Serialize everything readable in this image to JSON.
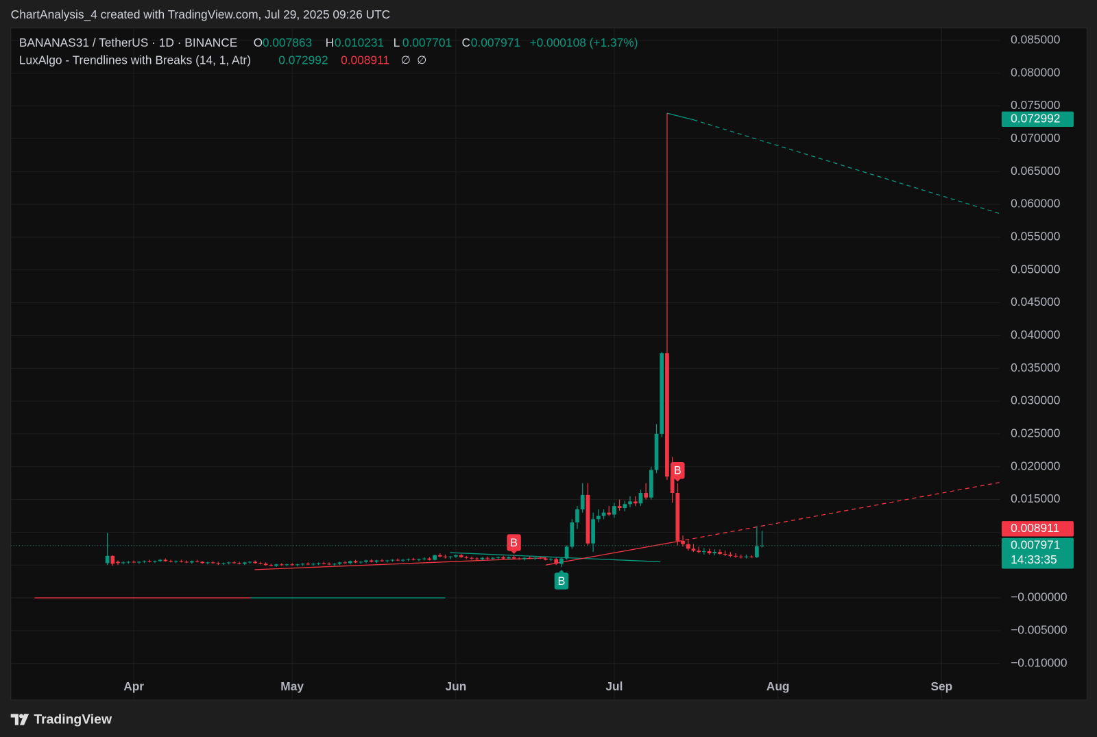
{
  "header": {
    "title": "ChartAnalysis_4 created with TradingView.com, Jul 29, 2025 09:26 UTC"
  },
  "chart_data": {
    "type": "candlestick",
    "symbol": "BANANAS31 / TetherUS · 1D · BINANCE",
    "ohlc_legend": [
      {
        "label": "O",
        "value": "0.007863"
      },
      {
        "label": "H",
        "value": "0.010231"
      },
      {
        "label": "L",
        "value": "0.007701"
      },
      {
        "label": "C",
        "value": "0.007971"
      }
    ],
    "change": "+0.000108 (+1.37%)",
    "indicator": {
      "name": "LuxAlgo - Trendlines with Breaks (14, 1, Atr)",
      "values": [
        {
          "text": "0.072992",
          "color": "#089981"
        },
        {
          "text": "0.008911",
          "color": "#f23645"
        }
      ],
      "icons": [
        "∅",
        "∅"
      ]
    },
    "up_color": "#089981",
    "down_color": "#f23645",
    "grid": true,
    "xlim": [
      67.7,
      255.1
    ],
    "xticks": [
      {
        "value": 91,
        "label": "Apr"
      },
      {
        "value": 121,
        "label": "May"
      },
      {
        "value": 152,
        "label": "Jun"
      },
      {
        "value": 182,
        "label": "Jul"
      },
      {
        "value": 213,
        "label": "Aug"
      },
      {
        "value": 244,
        "label": "Sep"
      }
    ],
    "ylim": [
      -0.01546,
      0.0869
    ],
    "yticks": [
      {
        "value": 0.085,
        "label": "0.085000"
      },
      {
        "value": 0.08,
        "label": "0.080000"
      },
      {
        "value": 0.075,
        "label": "0.075000"
      },
      {
        "value": 0.07,
        "label": "0.070000"
      },
      {
        "value": 0.065,
        "label": "0.065000"
      },
      {
        "value": 0.06,
        "label": "0.060000"
      },
      {
        "value": 0.055,
        "label": "0.055000"
      },
      {
        "value": 0.05,
        "label": "0.050000"
      },
      {
        "value": 0.045,
        "label": "0.045000"
      },
      {
        "value": 0.04,
        "label": "0.040000"
      },
      {
        "value": 0.035,
        "label": "0.035000"
      },
      {
        "value": 0.03,
        "label": "0.030000"
      },
      {
        "value": 0.025,
        "label": "0.025000"
      },
      {
        "value": 0.02,
        "label": "0.020000"
      },
      {
        "value": 0.015,
        "label": "0.015000"
      },
      {
        "value": 0.01,
        "label": "0.010000"
      },
      {
        "value": 0.005,
        "label": "0.005000"
      },
      {
        "value": 0,
        "label": "−0.000000"
      },
      {
        "value": -0.005,
        "label": "−0.005000"
      },
      {
        "value": -0.01,
        "label": "−0.010000"
      }
    ],
    "candles": [
      {
        "x": 86,
        "o": 0.0053,
        "h": 0.0099,
        "l": 0.005,
        "c": 0.0064
      },
      {
        "x": 87,
        "o": 0.0064,
        "h": 0.0065,
        "l": 0.0049,
        "c": 0.0052
      },
      {
        "x": 88,
        "o": 0.0055,
        "h": 0.0057,
        "l": 0.005,
        "c": 0.0053
      },
      {
        "x": 89,
        "o": 0.0053,
        "h": 0.0056,
        "l": 0.0051,
        "c": 0.0054
      },
      {
        "x": 90,
        "o": 0.0054,
        "h": 0.0056,
        "l": 0.0052,
        "c": 0.0055
      },
      {
        "x": 91,
        "o": 0.0055,
        "h": 0.0057,
        "l": 0.0053,
        "c": 0.0054
      },
      {
        "x": 92,
        "o": 0.0054,
        "h": 0.0056,
        "l": 0.0052,
        "c": 0.0055
      },
      {
        "x": 93,
        "o": 0.0055,
        "h": 0.0057,
        "l": 0.0053,
        "c": 0.0056
      },
      {
        "x": 94,
        "o": 0.0056,
        "h": 0.0058,
        "l": 0.0054,
        "c": 0.0055
      },
      {
        "x": 95,
        "o": 0.0055,
        "h": 0.0057,
        "l": 0.0053,
        "c": 0.0056
      },
      {
        "x": 96,
        "o": 0.0056,
        "h": 0.0059,
        "l": 0.0055,
        "c": 0.0058
      },
      {
        "x": 97,
        "o": 0.0058,
        "h": 0.006,
        "l": 0.0055,
        "c": 0.0056
      },
      {
        "x": 98,
        "o": 0.0056,
        "h": 0.0058,
        "l": 0.0054,
        "c": 0.0055
      },
      {
        "x": 99,
        "o": 0.0055,
        "h": 0.0057,
        "l": 0.0053,
        "c": 0.0056
      },
      {
        "x": 100,
        "o": 0.0056,
        "h": 0.0058,
        "l": 0.0054,
        "c": 0.0055
      },
      {
        "x": 101,
        "o": 0.0055,
        "h": 0.0057,
        "l": 0.0053,
        "c": 0.0054
      },
      {
        "x": 102,
        "o": 0.0054,
        "h": 0.0057,
        "l": 0.0052,
        "c": 0.0056
      },
      {
        "x": 103,
        "o": 0.0056,
        "h": 0.0058,
        "l": 0.0054,
        "c": 0.0055
      },
      {
        "x": 104,
        "o": 0.0055,
        "h": 0.0056,
        "l": 0.0052,
        "c": 0.0053
      },
      {
        "x": 105,
        "o": 0.0053,
        "h": 0.0055,
        "l": 0.0051,
        "c": 0.0054
      },
      {
        "x": 106,
        "o": 0.0054,
        "h": 0.0056,
        "l": 0.0052,
        "c": 0.0053
      },
      {
        "x": 107,
        "o": 0.0053,
        "h": 0.0055,
        "l": 0.005,
        "c": 0.0052
      },
      {
        "x": 108,
        "o": 0.0052,
        "h": 0.0054,
        "l": 0.005,
        "c": 0.0053
      },
      {
        "x": 109,
        "o": 0.0053,
        "h": 0.0055,
        "l": 0.0051,
        "c": 0.0054
      },
      {
        "x": 110,
        "o": 0.0054,
        "h": 0.0056,
        "l": 0.0052,
        "c": 0.0053
      },
      {
        "x": 111,
        "o": 0.0053,
        "h": 0.0055,
        "l": 0.0051,
        "c": 0.0052
      },
      {
        "x": 112,
        "o": 0.0052,
        "h": 0.0055,
        "l": 0.005,
        "c": 0.0054
      },
      {
        "x": 113,
        "o": 0.0054,
        "h": 0.0056,
        "l": 0.0052,
        "c": 0.0055
      },
      {
        "x": 114,
        "o": 0.0055,
        "h": 0.0057,
        "l": 0.0052,
        "c": 0.0053
      },
      {
        "x": 115,
        "o": 0.0053,
        "h": 0.0055,
        "l": 0.0051,
        "c": 0.0052
      },
      {
        "x": 116,
        "o": 0.0052,
        "h": 0.0054,
        "l": 0.0049,
        "c": 0.005
      },
      {
        "x": 117,
        "o": 0.005,
        "h": 0.0052,
        "l": 0.0048,
        "c": 0.0049
      },
      {
        "x": 118,
        "o": 0.0049,
        "h": 0.0052,
        "l": 0.0047,
        "c": 0.0051
      },
      {
        "x": 119,
        "o": 0.0051,
        "h": 0.0053,
        "l": 0.0049,
        "c": 0.005
      },
      {
        "x": 120,
        "o": 0.005,
        "h": 0.0052,
        "l": 0.0048,
        "c": 0.0051
      },
      {
        "x": 121,
        "o": 0.0051,
        "h": 0.0053,
        "l": 0.0049,
        "c": 0.005
      },
      {
        "x": 122,
        "o": 0.005,
        "h": 0.0052,
        "l": 0.0048,
        "c": 0.0051
      },
      {
        "x": 123,
        "o": 0.0051,
        "h": 0.0053,
        "l": 0.0049,
        "c": 0.0052
      },
      {
        "x": 124,
        "o": 0.0052,
        "h": 0.0054,
        "l": 0.005,
        "c": 0.0051
      },
      {
        "x": 125,
        "o": 0.0051,
        "h": 0.0053,
        "l": 0.0049,
        "c": 0.0052
      },
      {
        "x": 126,
        "o": 0.0052,
        "h": 0.0054,
        "l": 0.005,
        "c": 0.0053
      },
      {
        "x": 127,
        "o": 0.0053,
        "h": 0.0055,
        "l": 0.0051,
        "c": 0.0052
      },
      {
        "x": 128,
        "o": 0.0052,
        "h": 0.0054,
        "l": 0.005,
        "c": 0.0051
      },
      {
        "x": 129,
        "o": 0.0051,
        "h": 0.0053,
        "l": 0.0049,
        "c": 0.0052
      },
      {
        "x": 130,
        "o": 0.0052,
        "h": 0.0055,
        "l": 0.005,
        "c": 0.0054
      },
      {
        "x": 131,
        "o": 0.0054,
        "h": 0.0056,
        "l": 0.0052,
        "c": 0.0053
      },
      {
        "x": 132,
        "o": 0.0053,
        "h": 0.0057,
        "l": 0.0051,
        "c": 0.0056
      },
      {
        "x": 133,
        "o": 0.0056,
        "h": 0.0058,
        "l": 0.0053,
        "c": 0.0054
      },
      {
        "x": 134,
        "o": 0.0054,
        "h": 0.0056,
        "l": 0.0052,
        "c": 0.0055
      },
      {
        "x": 135,
        "o": 0.0055,
        "h": 0.0058,
        "l": 0.0053,
        "c": 0.0057
      },
      {
        "x": 136,
        "o": 0.0057,
        "h": 0.0059,
        "l": 0.0054,
        "c": 0.0055
      },
      {
        "x": 137,
        "o": 0.0055,
        "h": 0.0058,
        "l": 0.0053,
        "c": 0.0057
      },
      {
        "x": 138,
        "o": 0.0057,
        "h": 0.0059,
        "l": 0.0055,
        "c": 0.0056
      },
      {
        "x": 139,
        "o": 0.0056,
        "h": 0.0058,
        "l": 0.0054,
        "c": 0.0057
      },
      {
        "x": 140,
        "o": 0.0057,
        "h": 0.0059,
        "l": 0.0055,
        "c": 0.0058
      },
      {
        "x": 141,
        "o": 0.0058,
        "h": 0.006,
        "l": 0.0056,
        "c": 0.0057
      },
      {
        "x": 142,
        "o": 0.0057,
        "h": 0.0059,
        "l": 0.0055,
        "c": 0.0058
      },
      {
        "x": 143,
        "o": 0.0058,
        "h": 0.006,
        "l": 0.0056,
        "c": 0.0059
      },
      {
        "x": 144,
        "o": 0.0059,
        "h": 0.0061,
        "l": 0.0057,
        "c": 0.0058
      },
      {
        "x": 145,
        "o": 0.0058,
        "h": 0.006,
        "l": 0.0056,
        "c": 0.0059
      },
      {
        "x": 146,
        "o": 0.0059,
        "h": 0.0062,
        "l": 0.0057,
        "c": 0.006
      },
      {
        "x": 147,
        "o": 0.006,
        "h": 0.0062,
        "l": 0.0057,
        "c": 0.0058
      },
      {
        "x": 148,
        "o": 0.0058,
        "h": 0.0066,
        "l": 0.0057,
        "c": 0.0065
      },
      {
        "x": 149,
        "o": 0.0065,
        "h": 0.0068,
        "l": 0.0062,
        "c": 0.0063
      },
      {
        "x": 150,
        "o": 0.0063,
        "h": 0.0066,
        "l": 0.006,
        "c": 0.0062
      },
      {
        "x": 151,
        "o": 0.0062,
        "h": 0.0064,
        "l": 0.0059,
        "c": 0.0063
      },
      {
        "x": 152,
        "o": 0.0063,
        "h": 0.0066,
        "l": 0.0061,
        "c": 0.0065
      },
      {
        "x": 153,
        "o": 0.0065,
        "h": 0.0067,
        "l": 0.0061,
        "c": 0.0062
      },
      {
        "x": 154,
        "o": 0.0062,
        "h": 0.0064,
        "l": 0.0059,
        "c": 0.0061
      },
      {
        "x": 155,
        "o": 0.0061,
        "h": 0.0063,
        "l": 0.0058,
        "c": 0.006
      },
      {
        "x": 156,
        "o": 0.006,
        "h": 0.0062,
        "l": 0.0057,
        "c": 0.0059
      },
      {
        "x": 157,
        "o": 0.0059,
        "h": 0.0062,
        "l": 0.0057,
        "c": 0.0061
      },
      {
        "x": 158,
        "o": 0.0061,
        "h": 0.0063,
        "l": 0.0058,
        "c": 0.006
      },
      {
        "x": 159,
        "o": 0.006,
        "h": 0.0062,
        "l": 0.0058,
        "c": 0.0061
      },
      {
        "x": 160,
        "o": 0.0061,
        "h": 0.0063,
        "l": 0.0059,
        "c": 0.0062
      },
      {
        "x": 161,
        "o": 0.0062,
        "h": 0.0064,
        "l": 0.0059,
        "c": 0.006
      },
      {
        "x": 162,
        "o": 0.006,
        "h": 0.0063,
        "l": 0.0058,
        "c": 0.0062
      },
      {
        "x": 163,
        "o": 0.0062,
        "h": 0.0065,
        "l": 0.0059,
        "c": 0.006
      },
      {
        "x": 164,
        "o": 0.006,
        "h": 0.0062,
        "l": 0.0058,
        "c": 0.0059
      },
      {
        "x": 165,
        "o": 0.0059,
        "h": 0.0062,
        "l": 0.0057,
        "c": 0.0061
      },
      {
        "x": 166,
        "o": 0.0061,
        "h": 0.0063,
        "l": 0.0059,
        "c": 0.006
      },
      {
        "x": 167,
        "o": 0.006,
        "h": 0.0062,
        "l": 0.0058,
        "c": 0.0061
      },
      {
        "x": 168,
        "o": 0.0061,
        "h": 0.0063,
        "l": 0.0059,
        "c": 0.006
      },
      {
        "x": 169,
        "o": 0.006,
        "h": 0.0062,
        "l": 0.0057,
        "c": 0.0058
      },
      {
        "x": 170,
        "o": 0.0058,
        "h": 0.0061,
        "l": 0.0056,
        "c": 0.0059
      },
      {
        "x": 171,
        "o": 0.0059,
        "h": 0.0061,
        "l": 0.005,
        "c": 0.0052
      },
      {
        "x": 172,
        "o": 0.0052,
        "h": 0.0062,
        "l": 0.0047,
        "c": 0.006
      },
      {
        "x": 173,
        "o": 0.006,
        "h": 0.008,
        "l": 0.0058,
        "c": 0.0078
      },
      {
        "x": 174,
        "o": 0.0078,
        "h": 0.012,
        "l": 0.0075,
        "c": 0.0115
      },
      {
        "x": 175,
        "o": 0.0115,
        "h": 0.014,
        "l": 0.0105,
        "c": 0.0135
      },
      {
        "x": 176,
        "o": 0.0135,
        "h": 0.0175,
        "l": 0.013,
        "c": 0.0157
      },
      {
        "x": 177,
        "o": 0.0157,
        "h": 0.0175,
        "l": 0.008,
        "c": 0.0083
      },
      {
        "x": 178,
        "o": 0.0083,
        "h": 0.013,
        "l": 0.007,
        "c": 0.012
      },
      {
        "x": 179,
        "o": 0.012,
        "h": 0.0135,
        "l": 0.0115,
        "c": 0.0125
      },
      {
        "x": 180,
        "o": 0.0125,
        "h": 0.0135,
        "l": 0.012,
        "c": 0.013
      },
      {
        "x": 181,
        "o": 0.013,
        "h": 0.014,
        "l": 0.0125,
        "c": 0.0127
      },
      {
        "x": 182,
        "o": 0.0127,
        "h": 0.0145,
        "l": 0.0122,
        "c": 0.014
      },
      {
        "x": 183,
        "o": 0.014,
        "h": 0.015,
        "l": 0.0133,
        "c": 0.0137
      },
      {
        "x": 184,
        "o": 0.0137,
        "h": 0.0148,
        "l": 0.0132,
        "c": 0.0143
      },
      {
        "x": 185,
        "o": 0.0143,
        "h": 0.0155,
        "l": 0.0138,
        "c": 0.0147
      },
      {
        "x": 186,
        "o": 0.0147,
        "h": 0.0155,
        "l": 0.014,
        "c": 0.0144
      },
      {
        "x": 187,
        "o": 0.0144,
        "h": 0.0165,
        "l": 0.014,
        "c": 0.016
      },
      {
        "x": 188,
        "o": 0.016,
        "h": 0.0175,
        "l": 0.015,
        "c": 0.0153
      },
      {
        "x": 189,
        "o": 0.0153,
        "h": 0.02,
        "l": 0.015,
        "c": 0.0195
      },
      {
        "x": 190,
        "o": 0.0195,
        "h": 0.0265,
        "l": 0.019,
        "c": 0.025
      },
      {
        "x": 191,
        "o": 0.025,
        "h": 0.0375,
        "l": 0.0245,
        "c": 0.0373
      },
      {
        "x": 192,
        "o": 0.0373,
        "h": 0.0739,
        "l": 0.018,
        "c": 0.0185
      },
      {
        "x": 193,
        "o": 0.0185,
        "h": 0.0215,
        "l": 0.0145,
        "c": 0.016
      },
      {
        "x": 194,
        "o": 0.016,
        "h": 0.0175,
        "l": 0.008,
        "c": 0.0087
      },
      {
        "x": 195,
        "o": 0.0087,
        "h": 0.0095,
        "l": 0.0078,
        "c": 0.0082
      },
      {
        "x": 196,
        "o": 0.0082,
        "h": 0.0088,
        "l": 0.0072,
        "c": 0.0075
      },
      {
        "x": 197,
        "o": 0.0075,
        "h": 0.0082,
        "l": 0.007,
        "c": 0.0072
      },
      {
        "x": 198,
        "o": 0.0072,
        "h": 0.0078,
        "l": 0.0068,
        "c": 0.007
      },
      {
        "x": 199,
        "o": 0.007,
        "h": 0.0076,
        "l": 0.0066,
        "c": 0.0071
      },
      {
        "x": 200,
        "o": 0.0071,
        "h": 0.0075,
        "l": 0.0066,
        "c": 0.0068
      },
      {
        "x": 201,
        "o": 0.0068,
        "h": 0.0074,
        "l": 0.0065,
        "c": 0.007
      },
      {
        "x": 202,
        "o": 0.007,
        "h": 0.0074,
        "l": 0.0066,
        "c": 0.0067
      },
      {
        "x": 203,
        "o": 0.0067,
        "h": 0.0072,
        "l": 0.0064,
        "c": 0.0066
      },
      {
        "x": 204,
        "o": 0.0066,
        "h": 0.007,
        "l": 0.0062,
        "c": 0.0064
      },
      {
        "x": 205,
        "o": 0.0064,
        "h": 0.0068,
        "l": 0.0061,
        "c": 0.0063
      },
      {
        "x": 206,
        "o": 0.0063,
        "h": 0.0066,
        "l": 0.006,
        "c": 0.0062
      },
      {
        "x": 207,
        "o": 0.0062,
        "h": 0.0066,
        "l": 0.006,
        "c": 0.0063
      },
      {
        "x": 208,
        "o": 0.0063,
        "h": 0.0065,
        "l": 0.0061,
        "c": 0.0062
      },
      {
        "x": 209,
        "o": 0.0062,
        "h": 0.0109,
        "l": 0.0061,
        "c": 0.007863
      },
      {
        "x": 210,
        "o": 0.007863,
        "h": 0.010231,
        "l": 0.007701,
        "c": 0.007971
      }
    ],
    "trendlines": [
      {
        "x1": 72.2,
        "y1": 0,
        "x2": 113.1,
        "y2": 0,
        "color": "#f23645",
        "dashed": false
      },
      {
        "x1": 113.1,
        "y1": 0,
        "x2": 150.0,
        "y2": 0,
        "color": "#089981",
        "dashed": false
      },
      {
        "x1": 113.9,
        "y1": 0.0043,
        "x2": 169.0,
        "y2": 0.0061,
        "color": "#f23645",
        "dashed": false
      },
      {
        "x1": 150.9,
        "y1": 0.0069,
        "x2": 190.7,
        "y2": 0.0055,
        "color": "#089981",
        "dashed": false
      },
      {
        "x1": 169.0,
        "y1": 0.005,
        "x2": 194.0,
        "y2": 0.0086,
        "color": "#f23645",
        "dashed": false
      },
      {
        "x1": 194.0,
        "y1": 0.0086,
        "x2": 255.0,
        "y2": 0.0176,
        "color": "#f23645",
        "dashed": true
      },
      {
        "x1": 192.0,
        "y1": 0.0739,
        "x2": 197.0,
        "y2": 0.0729,
        "color": "#089981",
        "dashed": false
      },
      {
        "x1": 197.0,
        "y1": 0.0729,
        "x2": 255.0,
        "y2": 0.0586,
        "color": "#089981",
        "dashed": true
      }
    ],
    "signals": [
      {
        "x": 163,
        "label": "B",
        "side": "above",
        "color": "#f23645"
      },
      {
        "x": 172,
        "label": "B",
        "side": "below",
        "color": "#089981"
      },
      {
        "x": 194,
        "label": "B",
        "side": "above",
        "color": "#f23645"
      }
    ],
    "price_tags": [
      {
        "value": 0.072992,
        "color": "#089981"
      },
      {
        "value": 0.008911,
        "color": "#f23645"
      },
      {
        "value": 0.007971,
        "color": "#089981",
        "countdown": "14:33:35",
        "line": true
      }
    ]
  },
  "footer": {
    "brand": "TradingView"
  }
}
